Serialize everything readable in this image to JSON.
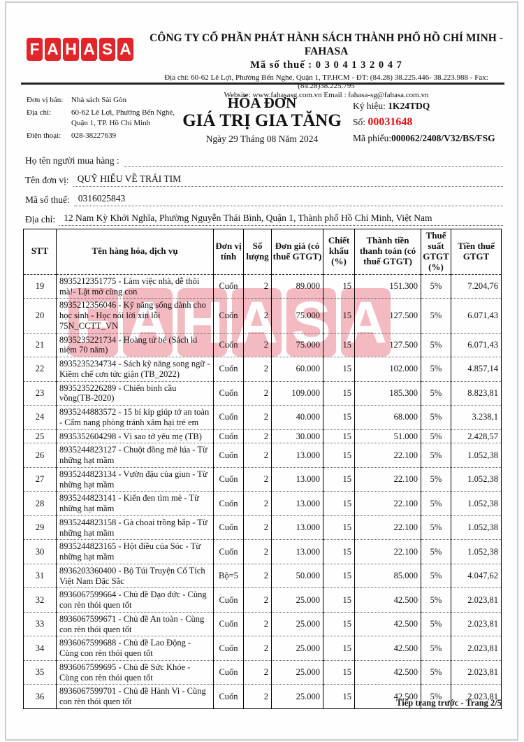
{
  "header": {
    "logo_letters": [
      "F",
      "A",
      "H",
      "A",
      "S",
      "A"
    ],
    "company_name": "CÔNG TY CỔ PHẦN PHÁT HÀNH SÁCH THÀNH PHỐ HỒ CHÍ MINH - FAHASA",
    "tax_line": "Mã số thuế : 0 3 0 4 1 3 2 0 4 7",
    "address_line": "Địa chỉ: 60-62 Lê Lợi, Phường Bến Nghé, Quận 1, TP.HCM - ĐT: (84.28) 38.225.446- 38.223.988 - Fax: (84.28)38.225.795",
    "website_line": "Website: www.fahasasg.com.vn Email : fahasa-sg@fahasa.com.vn"
  },
  "seller": {
    "unit_label": "Đơn vị bán:",
    "unit_value": "Nhà sách Sài Gòn",
    "address_label": "Địa chỉ:",
    "address_value": "60-62 Lê Lợi, Phường Bến Nghé, Quận 1, TP. Hồ Chí Minh",
    "phone_label": "Điện thoại:",
    "phone_value": "028-38227639"
  },
  "invoice": {
    "title_line1": "HÓA ĐƠN",
    "title_line2": "GIÁ TRỊ GIA TĂNG",
    "date_line": "Ngày 29 Tháng 08 Năm 2024",
    "serial_label": "Ký hiệu:",
    "serial_value": "1K24TDQ",
    "number_label": "Số:",
    "number_value": "00031648",
    "code_label": "Mã phiếu:",
    "code_value": "000062/2408/V32/BS/FSG"
  },
  "buyer": {
    "name_label": "Họ tên người mua hàng :",
    "name_value": "",
    "unit_label": "Tên đơn vị:",
    "unit_value": "QUỸ HIỂU VỀ TRÁI TIM",
    "tax_label": "Mã số thuế:",
    "tax_value": "0316025843",
    "address_label": "Địa chỉ:",
    "address_value": "12 Nam Kỳ Khởi Nghĩa, Phường Nguyễn Thái Bình, Quận 1, Thành phố Hồ Chí Minh, Việt Nam"
  },
  "table": {
    "headers": [
      "STT",
      "Tên hàng hóa, dịch vụ",
      "Đơn vị tính",
      "Số lượng",
      "Đơn giá (có thuế GTGT)",
      "Chiết khấu (%)",
      "Thành tiền thanh toán (có thuế GTGT)",
      "Thuế suất GTGT (%)",
      "Tiền thuế GTGT"
    ],
    "rows": [
      [
        "19",
        "8935212351775 - Làm việc nhà, dễ thôi mà!- Lật mở cùng con",
        "Cuốn",
        "2",
        "89.000",
        "15",
        "151.300",
        "5%",
        "7.204,76"
      ],
      [
        "20",
        "8935212356046 - Kỹ năng sống dành cho học sinh - Học nói lời xin lỗi 75N_CCTT_VN",
        "Cuốn",
        "2",
        "75.000",
        "15",
        "127.500",
        "5%",
        "6.071,43"
      ],
      [
        "21",
        "8935235221734 - Hoàng tử bé (Sách ki niệm 70 năm)",
        "Cuốn",
        "2",
        "75.000",
        "15",
        "127.500",
        "5%",
        "6.071,43"
      ],
      [
        "22",
        "8935235234734 - Sách kỹ năng song ngữ - Kiềm chế cơn tức giận (TB_2022)",
        "Cuốn",
        "2",
        "60.000",
        "15",
        "102.000",
        "5%",
        "4.857,14"
      ],
      [
        "23",
        "8935235226289 - Chiến binh cầu vồng(TB-2020)",
        "Cuốn",
        "2",
        "109.000",
        "15",
        "185.300",
        "5%",
        "8.823,81"
      ],
      [
        "24",
        "8935244883572 - 15 bí kíp giúp tớ an toàn - Cẩm nang phòng tránh xâm hại trẻ em",
        "Cuốn",
        "2",
        "40.000",
        "15",
        "68.000",
        "5%",
        "3.238,1"
      ],
      [
        "25",
        "8935352604298 - Vì sao tớ yêu mẹ (TB)",
        "Cuốn",
        "2",
        "30.000",
        "15",
        "51.000",
        "5%",
        "2.428,57"
      ],
      [
        "26",
        "8935244823127 - Chuột đồng mê lúa - Từ những hạt mầm",
        "Cuốn",
        "2",
        "13.000",
        "15",
        "22.100",
        "5%",
        "1.052,38"
      ],
      [
        "27",
        "8935244823134 - Vườn đậu của giun - Từ những hạt mầm",
        "Cuốn",
        "2",
        "13.000",
        "15",
        "22.100",
        "5%",
        "1.052,38"
      ],
      [
        "28",
        "8935244823141 - Kiến đen tìm mè - Từ những hạt mầm",
        "Cuốn",
        "2",
        "13.000",
        "15",
        "22.100",
        "5%",
        "1.052,38"
      ],
      [
        "29",
        "8935244823158 - Gà choai trồng bắp - Từ những hạt mầm",
        "Cuốn",
        "2",
        "13.000",
        "15",
        "22.100",
        "5%",
        "1.052,38"
      ],
      [
        "30",
        "8935244823165 - Hột điều của Sóc - Từ những hạt mầm",
        "Cuốn",
        "2",
        "13.000",
        "15",
        "22.100",
        "5%",
        "1.052,38"
      ],
      [
        "31",
        "8936203360400 - Bộ Túi Truyện Cổ Tích Việt Nam Đặc Sắc",
        "Bộ=5",
        "2",
        "50.000",
        "15",
        "85.000",
        "5%",
        "4.047,62"
      ],
      [
        "32",
        "8936067599664 - Chủ đề Đạo đức - Cùng con rèn thói quen tốt",
        "Cuốn",
        "2",
        "25.000",
        "15",
        "42.500",
        "5%",
        "2.023,81"
      ],
      [
        "33",
        "8936067599671 - Chủ đề An toàn - Cùng con rèn thói quen tốt",
        "Cuốn",
        "2",
        "25.000",
        "15",
        "42.500",
        "5%",
        "2.023,81"
      ],
      [
        "34",
        "8936067599688 - Chủ đề Lao Động - Cùng con rèn thói quen tốt",
        "Cuốn",
        "2",
        "25.000",
        "15",
        "42.500",
        "5%",
        "2.023,81"
      ],
      [
        "35",
        "8936067599695 - Chủ đề Sức Khỏe - Cùng con rèn thói quen tốt",
        "Cuốn",
        "2",
        "25.000",
        "15",
        "42.500",
        "5%",
        "2.023,81"
      ],
      [
        "36",
        "8936067599701 - Chủ đề Hành Vi - Cùng con rèn thói quen tốt",
        "Cuốn",
        "2",
        "25.000",
        "15",
        "42.500",
        "5%",
        "2.023,81"
      ]
    ]
  },
  "watermark": {
    "letters": [
      "F",
      "A",
      "H",
      "A",
      "S",
      "A"
    ]
  },
  "footer": {
    "page_note": "Tiếp trang trước - Trang 2/5"
  },
  "colors": {
    "brand_red": "#e2252b",
    "invoice_number_red": "#e81219",
    "watermark_pink": "#f4bac2"
  }
}
